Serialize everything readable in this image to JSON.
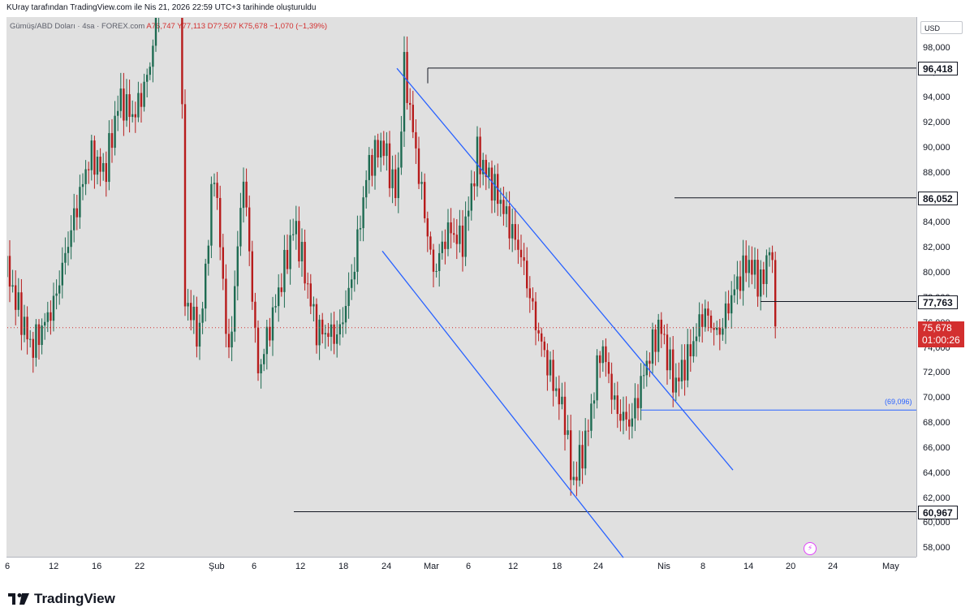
{
  "header": {
    "credit": "KUray tarafından TradingView.com ile Nis 21, 2026 22:59 UTC+3 tarihinde oluşturuldu"
  },
  "symbol": {
    "name": "Gümüş/ABD Doları · 4sa · FOREX.com",
    "open": "A76,747",
    "high": "Y77,113",
    "low": "D7?,507",
    "close": "K75,678",
    "change": "−1,070 (−1,39%)"
  },
  "currency": "USD",
  "branding": {
    "logo_text": "TradingView"
  },
  "colors": {
    "up": "#1e6b52",
    "down": "#b71c1c",
    "channel": "#2962ff",
    "level": "#131722",
    "price_badge": "#d32f2f"
  },
  "chart_data": {
    "type": "candlestick",
    "timeframe": "4sa",
    "ylim": [
      57000,
      100000
    ],
    "price_ticks": [
      "98,000",
      "96,000",
      "94,000",
      "92,000",
      "90,000",
      "88,000",
      "86,000",
      "84,000",
      "82,000",
      "80,000",
      "78,000",
      "76,000",
      "74,000",
      "72,000",
      "70,000",
      "68,000",
      "66,000",
      "64,000",
      "62,000",
      "60,000",
      "58,000"
    ],
    "time_ticks": [
      "6",
      "12",
      "16",
      "22",
      "Şub",
      "6",
      "12",
      "18",
      "24",
      "Mar",
      "6",
      "12",
      "18",
      "24",
      "Nis",
      "8",
      "14",
      "20",
      "24",
      "May"
    ],
    "horizontal_levels": [
      {
        "label": "96,418",
        "value": 96.418
      },
      {
        "label": "86,052",
        "value": 86.052
      },
      {
        "label": "77,763",
        "value": 77.763
      },
      {
        "label": "69,096",
        "value": 69.096,
        "annotation": "(69,096)"
      },
      {
        "label": "60,967",
        "value": 60.967
      }
    ],
    "last_price": {
      "value": "75,678",
      "countdown": "01:00:26"
    },
    "channel_lines": [
      {
        "from": [
          "2026-02-28",
          96.4
        ],
        "to": [
          "2026-04-15",
          64.3
        ]
      },
      {
        "from": [
          "2026-02-26",
          81.8
        ],
        "to": [
          "2026-03-31",
          57.3
        ]
      }
    ],
    "close_path": [
      [
        "2026-01-02",
        75.5
      ],
      [
        "2026-01-05",
        81.5
      ],
      [
        "2026-01-07",
        77.5
      ],
      [
        "2026-01-09",
        74.0
      ],
      [
        "2026-01-12",
        77.5
      ],
      [
        "2026-01-15",
        85.0
      ],
      [
        "2026-01-17",
        89.5
      ],
      [
        "2026-01-19",
        88.0
      ],
      [
        "2026-01-21",
        94.0
      ],
      [
        "2026-01-23",
        92.5
      ],
      [
        "2026-01-25",
        96.0
      ],
      [
        "2026-01-27",
        104.0
      ],
      [
        "2026-01-29",
        114.0
      ],
      [
        "2026-01-30",
        78.0
      ],
      [
        "2026-02-01",
        75.0
      ],
      [
        "2026-02-03",
        88.5
      ],
      [
        "2026-02-05",
        73.0
      ],
      [
        "2026-02-07",
        88.0
      ],
      [
        "2026-02-09",
        72.0
      ],
      [
        "2026-02-12",
        79.0
      ],
      [
        "2026-02-14",
        84.0
      ],
      [
        "2026-02-17",
        75.5
      ],
      [
        "2026-02-20",
        75.0
      ],
      [
        "2026-02-22",
        80.0
      ],
      [
        "2026-02-24",
        88.5
      ],
      [
        "2026-02-26",
        90.5
      ],
      [
        "2026-02-28",
        86.0
      ],
      [
        "2026-03-01",
        96.4
      ],
      [
        "2026-03-03",
        88.0
      ],
      [
        "2026-03-05",
        80.0
      ],
      [
        "2026-03-07",
        83.5
      ],
      [
        "2026-03-09",
        82.5
      ],
      [
        "2026-03-11",
        89.5
      ],
      [
        "2026-03-14",
        86.0
      ],
      [
        "2026-03-17",
        81.5
      ],
      [
        "2026-03-19",
        76.0
      ],
      [
        "2026-03-21",
        72.0
      ],
      [
        "2026-03-23",
        68.5
      ],
      [
        "2026-03-24",
        63.0
      ],
      [
        "2026-03-26",
        67.0
      ],
      [
        "2026-03-28",
        74.5
      ],
      [
        "2026-03-30",
        69.0
      ],
      [
        "2026-04-01",
        68.0
      ],
      [
        "2026-04-03",
        72.5
      ],
      [
        "2026-04-05",
        76.0
      ],
      [
        "2026-04-07",
        71.0
      ],
      [
        "2026-04-09",
        73.5
      ],
      [
        "2026-04-11",
        77.0
      ],
      [
        "2026-04-13",
        75.0
      ],
      [
        "2026-04-15",
        78.5
      ],
      [
        "2026-04-17",
        81.0
      ],
      [
        "2026-04-19",
        79.0
      ],
      [
        "2026-04-20",
        82.5
      ],
      [
        "2026-04-21",
        75.678
      ]
    ]
  }
}
